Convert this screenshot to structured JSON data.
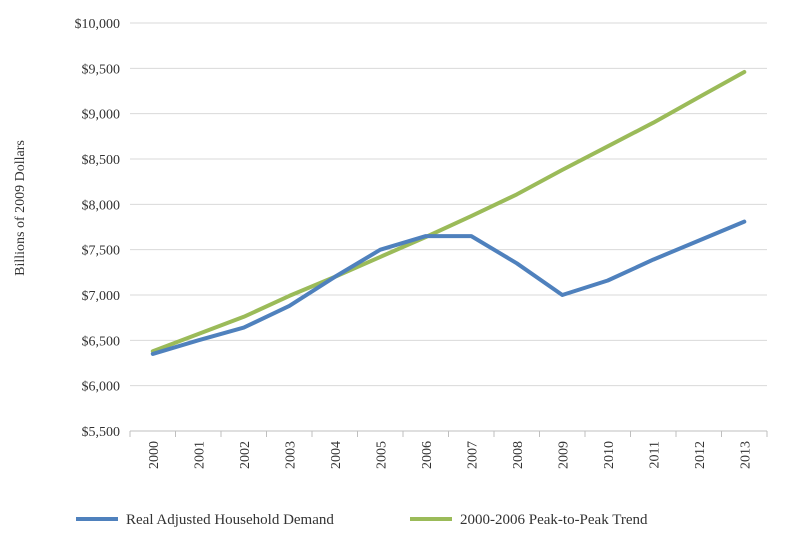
{
  "chart_data": {
    "type": "line",
    "title": "",
    "xlabel": "",
    "ylabel": "Billions of 2009 Dollars",
    "categories": [
      "2000",
      "2001",
      "2002",
      "2003",
      "2004",
      "2005",
      "2006",
      "2007",
      "2008",
      "2009",
      "2010",
      "2011",
      "2012",
      "2013"
    ],
    "ylim": [
      5500,
      10000
    ],
    "y_ticks": [
      5500,
      6000,
      6500,
      7000,
      7500,
      8000,
      8500,
      9000,
      9500,
      10000
    ],
    "y_tick_labels": [
      "$5,500",
      "$6,000",
      "$6,500",
      "$7,000",
      "$7,500",
      "$8,000",
      "$8,500",
      "$9,000",
      "$9,500",
      "$10,000"
    ],
    "grid": "horizontal",
    "legend_position": "bottom",
    "series": [
      {
        "name": "Real Adjusted Household Demand",
        "color": "#4f81bd",
        "values": [
          6350,
          6500,
          6640,
          6880,
          7200,
          7500,
          7650,
          7650,
          7350,
          7000,
          7160,
          7390,
          7600,
          7810
        ]
      },
      {
        "name": "2000-2006 Peak-to-Peak Trend",
        "color": "#9bbb59",
        "values": [
          6380,
          6570,
          6760,
          6990,
          7200,
          7420,
          7640,
          7870,
          8110,
          8380,
          8640,
          8900,
          9180,
          9460
        ]
      }
    ]
  }
}
